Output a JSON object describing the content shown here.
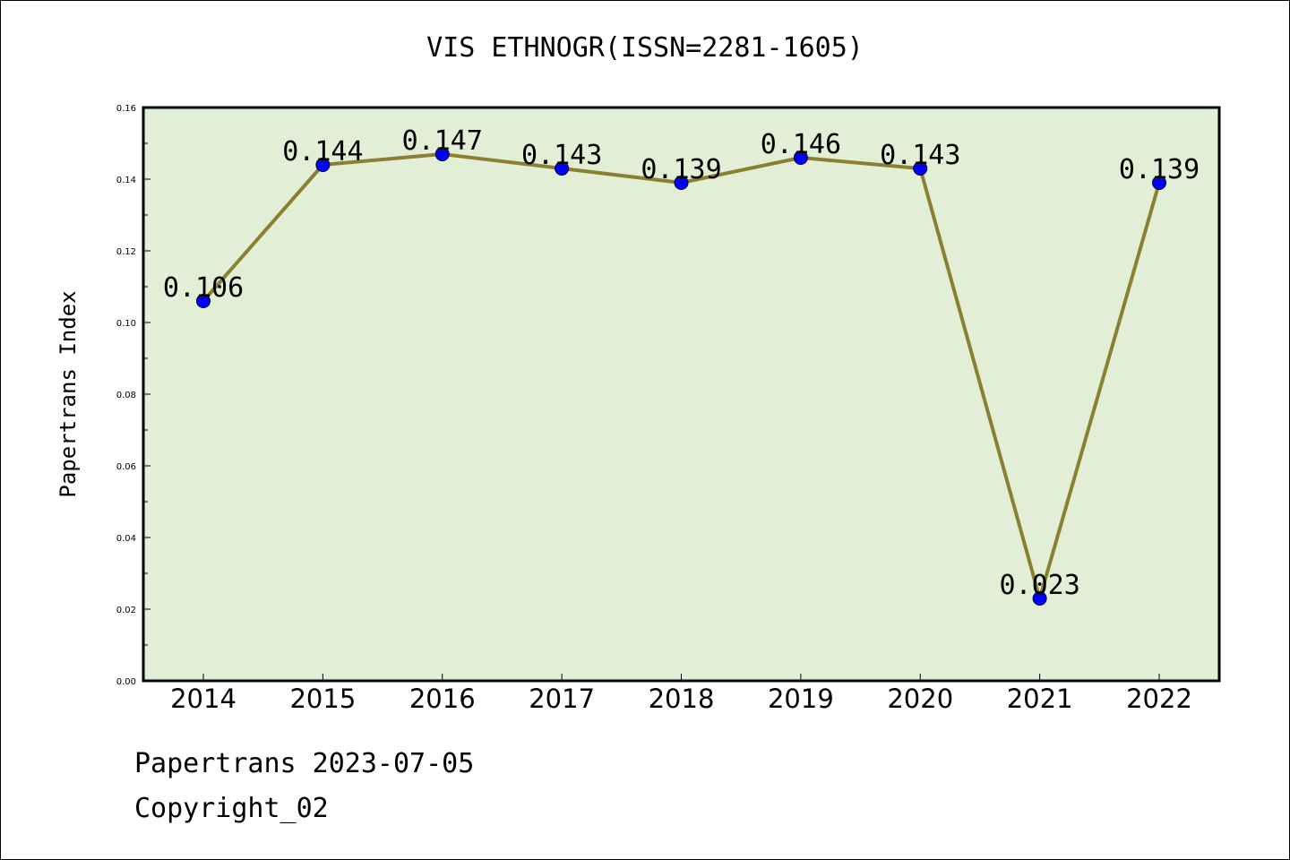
{
  "footer": {
    "date_line": "Papertrans 2023-07-05",
    "copyright": "Copyright_02"
  },
  "colors": {
    "plot_background": "#e2efd6",
    "line": "#8b8032",
    "marker": "#0000ff",
    "axis": "#000000"
  },
  "chart_data": {
    "type": "line",
    "title": "VIS ETHNOGR(ISSN=2281-1605)",
    "xlabel": "",
    "ylabel": "Papertrans Index",
    "categories": [
      "2014",
      "2015",
      "2016",
      "2017",
      "2018",
      "2019",
      "2020",
      "2021",
      "2022"
    ],
    "values": [
      0.106,
      0.144,
      0.147,
      0.143,
      0.139,
      0.146,
      0.143,
      0.023,
      0.139
    ],
    "data_labels": [
      "0.106",
      "0.144",
      "0.147",
      "0.143",
      "0.139",
      "0.146",
      "0.143",
      "0.023",
      "0.139"
    ],
    "ylim": [
      0,
      0.16
    ],
    "yticks": [
      0.0,
      0.02,
      0.04,
      0.06,
      0.08,
      0.1,
      0.12,
      0.14,
      0.16
    ],
    "ytick_labels": [
      "0.00",
      "0.02",
      "0.04",
      "0.06",
      "0.08",
      "0.10",
      "0.12",
      "0.14",
      "0.16"
    ],
    "grid": false,
    "legend": "none"
  }
}
